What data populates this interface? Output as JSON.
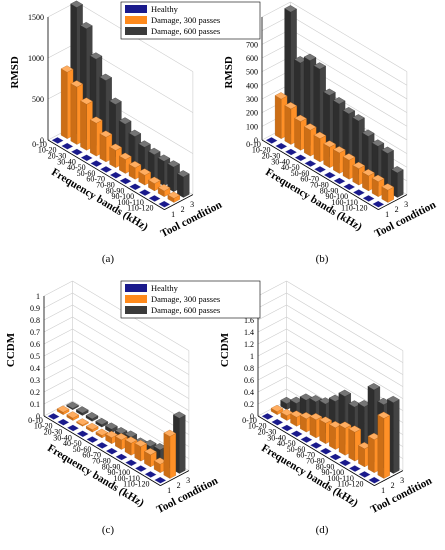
{
  "colors": {
    "healthy": "#1a1a8c",
    "damage300": "#ff8a1c",
    "damage600": "#3a3a3a",
    "grid": "#cccccc",
    "axis": "#000000"
  },
  "legend": [
    "Healthy",
    "Damage, 300 passes",
    "Damage, 600 passes"
  ],
  "chart_data": [
    {
      "type": "bar",
      "panel_label": "(a)",
      "zlabel": "RMSD",
      "xlabel": "Frequency bands (kHz)",
      "ylabel": "Tool condition",
      "zlim": [
        0,
        1500
      ],
      "z_ticks": [
        "0",
        "500",
        "1000",
        "1500"
      ],
      "categories": [
        "0-10",
        "10-20",
        "20-30",
        "30-40",
        "40-50",
        "50-60",
        "60-70",
        "70-80",
        "80-90",
        "90-100",
        "100-110",
        "110-120"
      ],
      "conditions": [
        "1",
        "2",
        "3"
      ],
      "series": [
        {
          "name": "Healthy",
          "values": [
            0,
            0,
            0,
            0,
            0,
            0,
            0,
            0,
            0,
            0,
            0,
            0
          ]
        },
        {
          "name": "Damage, 300 passes",
          "values": [
            810,
            700,
            560,
            400,
            300,
            210,
            170,
            140,
            120,
            90,
            70,
            50
          ]
        },
        {
          "name": "Damage, 600 passes",
          "values": [
            1540,
            1350,
            1050,
            860,
            640,
            470,
            390,
            330,
            310,
            300,
            300,
            250
          ]
        }
      ]
    },
    {
      "type": "bar",
      "panel_label": "(b)",
      "zlabel": "RMSD",
      "xlabel": "Frequency bands (kHz)",
      "ylabel": "Tool condition",
      "zlim": [
        0,
        900
      ],
      "z_ticks": [
        "0",
        "100",
        "200",
        "300",
        "400",
        "500",
        "600",
        "700",
        "800",
        "900"
      ],
      "categories": [
        "0-10",
        "10-20",
        "20-30",
        "30-40",
        "40-50",
        "50-60",
        "60-70",
        "70-80",
        "80-90",
        "90-100",
        "100-110",
        "110-120"
      ],
      "conditions": [
        "1",
        "2",
        "3"
      ],
      "series": [
        {
          "name": "Healthy",
          "values": [
            0,
            0,
            0,
            0,
            0,
            0,
            0,
            0,
            0,
            0,
            0,
            0
          ]
        },
        {
          "name": "Damage, 300 passes",
          "values": [
            290,
            260,
            210,
            190,
            170,
            150,
            150,
            140,
            120,
            110,
            110,
            90
          ]
        },
        {
          "name": "Damage, 600 passes",
          "values": [
            890,
            560,
            620,
            600,
            450,
            430,
            400,
            390,
            320,
            290,
            280,
            180
          ]
        }
      ]
    },
    {
      "type": "bar",
      "panel_label": "(c)",
      "zlabel": "CCDM",
      "xlabel": "Frequency bands (kHz)",
      "ylabel": "Tool condition",
      "zlim": [
        0,
        1
      ],
      "z_ticks": [
        "0",
        "0.1",
        "0.2",
        "0.3",
        "0.4",
        "0.5",
        "0.6",
        "0.7",
        "0.8",
        "0.9",
        "1"
      ],
      "categories": [
        "0-10",
        "10-20",
        "20-30",
        "30-40",
        "40-50",
        "50-60",
        "60-70",
        "70-80",
        "80-90",
        "90-100",
        "100-110",
        "110-120"
      ],
      "conditions": [
        "1",
        "2",
        "3"
      ],
      "series": [
        {
          "name": "Healthy",
          "values": [
            0,
            0,
            0,
            0,
            0,
            0,
            0,
            0,
            0,
            0,
            0,
            0
          ]
        },
        {
          "name": "Damage, 300 passes",
          "values": [
            0.02,
            0.02,
            0.01,
            0.02,
            0.02,
            0.05,
            0.08,
            0.1,
            0.12,
            0.1,
            0.07,
            0.35
          ]
        },
        {
          "name": "Damage, 600 passes",
          "values": [
            0.01,
            0.02,
            0.02,
            0.02,
            0.03,
            0.04,
            0.06,
            0.05,
            0.08,
            0.1,
            0.12,
            0.46
          ]
        }
      ]
    },
    {
      "type": "bar",
      "panel_label": "(d)",
      "zlabel": "CCDM",
      "xlabel": "Frequency bands (kHz)",
      "ylabel": "Tool condition",
      "zlim": [
        0,
        2
      ],
      "z_ticks": [
        "0",
        "0.2",
        "0.4",
        "0.6",
        "0.8",
        "1",
        "1.2",
        "1.4",
        "1.6",
        "1.8",
        "2"
      ],
      "categories": [
        "0-10",
        "10-20",
        "20-30",
        "30-40",
        "40-50",
        "50-60",
        "60-70",
        "70-80",
        "80-90",
        "90-100",
        "100-110",
        "110-120"
      ],
      "conditions": [
        "1",
        "2",
        "3"
      ],
      "series": [
        {
          "name": "Healthy",
          "values": [
            0,
            0,
            0,
            0,
            0,
            0,
            0,
            0,
            0,
            0,
            0,
            0
          ]
        },
        {
          "name": "Damage, 300 passes",
          "values": [
            0.05,
            0.08,
            0.15,
            0.22,
            0.3,
            0.34,
            0.36,
            0.45,
            0.48,
            0.3,
            0.55,
            1.0
          ]
        },
        {
          "name": "Damage, 600 passes",
          "values": [
            0.1,
            0.2,
            0.35,
            0.42,
            0.48,
            0.62,
            0.8,
            0.72,
            0.82,
            1.2,
            1.05,
            1.18
          ]
        }
      ]
    }
  ]
}
